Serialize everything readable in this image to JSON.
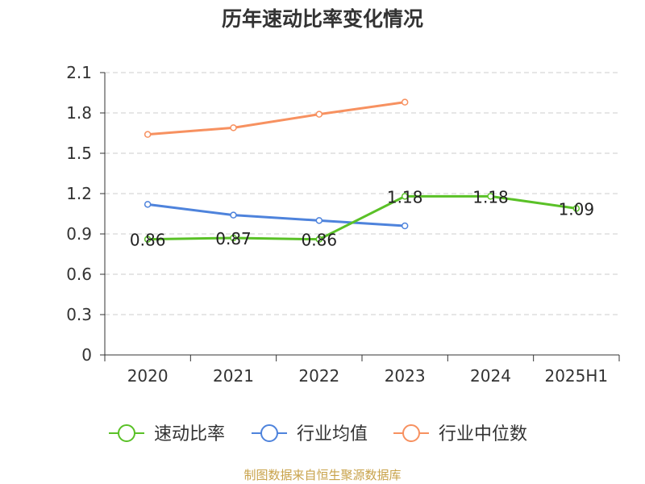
{
  "chart_data": {
    "type": "line",
    "title": "历年速动比率变化情况",
    "categories": [
      "2020",
      "2021",
      "2022",
      "2023",
      "2024",
      "2025H1"
    ],
    "y_ticks": [
      "0",
      "0.3",
      "0.6",
      "0.9",
      "1.2",
      "1.5",
      "1.8",
      "2.1"
    ],
    "ylim": [
      0,
      2.1
    ],
    "grid": true,
    "legend_position": "bottom",
    "series": [
      {
        "name": "速动比率",
        "color": "#5ac127",
        "values": [
          0.86,
          0.87,
          0.86,
          1.18,
          1.18,
          1.09
        ],
        "labels": [
          "0.86",
          "0.87",
          "0.86",
          "1.18",
          "1.18",
          "1.09"
        ]
      },
      {
        "name": "行业均值",
        "color": "#4e83dc",
        "values": [
          1.12,
          1.04,
          1.0,
          0.96,
          null,
          null
        ]
      },
      {
        "name": "行业中位数",
        "color": "#f79160",
        "values": [
          1.64,
          1.69,
          1.79,
          1.88,
          null,
          null
        ]
      }
    ]
  },
  "footer": {
    "source": "制图数据来自恒生聚源数据库"
  }
}
